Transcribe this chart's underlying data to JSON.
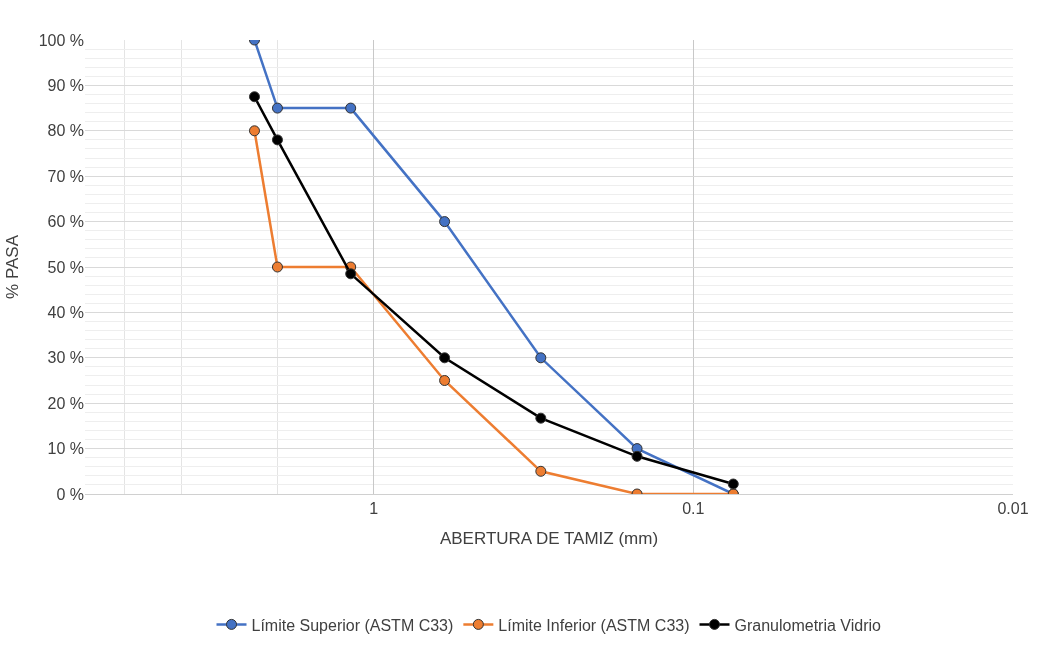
{
  "chart_data": {
    "type": "line",
    "xlabel": "ABERTURA DE TAMIZ (mm)",
    "ylabel": "% PASA",
    "x": [
      2.36,
      2.0,
      1.18,
      0.6,
      0.3,
      0.15,
      0.075
    ],
    "series": [
      {
        "name": "Límite Superior (ASTM C33)",
        "color": "#4472c4",
        "values": [
          100,
          85,
          85,
          60,
          30,
          10,
          0
        ]
      },
      {
        "name": "Límite Inferior (ASTM C33)",
        "color": "#ed7d31",
        "values": [
          80,
          50,
          50,
          25,
          5,
          0,
          0
        ]
      },
      {
        "name": "Granulometria Vidrio",
        "color": "#000000",
        "values": [
          87.5,
          78,
          48.5,
          30,
          16.7,
          8.3,
          2.2
        ]
      }
    ],
    "log": "x",
    "xlim": [
      8,
      0.01
    ],
    "xticks": [
      1,
      0.1,
      0.01
    ],
    "ylim": [
      0,
      100
    ],
    "yticks": [
      {
        "value": 0,
        "label": "0 %"
      },
      {
        "value": 10,
        "label": "10 %"
      },
      {
        "value": 20,
        "label": "20 %"
      },
      {
        "value": 30,
        "label": "30 %"
      },
      {
        "value": 40,
        "label": "40 %"
      },
      {
        "value": 50,
        "label": "50 %"
      },
      {
        "value": 60,
        "label": "60 %"
      },
      {
        "value": 70,
        "label": "70 %"
      },
      {
        "value": 80,
        "label": "80 %"
      },
      {
        "value": 90,
        "label": "90 %"
      },
      {
        "value": 100,
        "label": "100 %"
      }
    ],
    "grid": true,
    "legend": "bottom",
    "marker": "circle",
    "line_style": "solid"
  }
}
